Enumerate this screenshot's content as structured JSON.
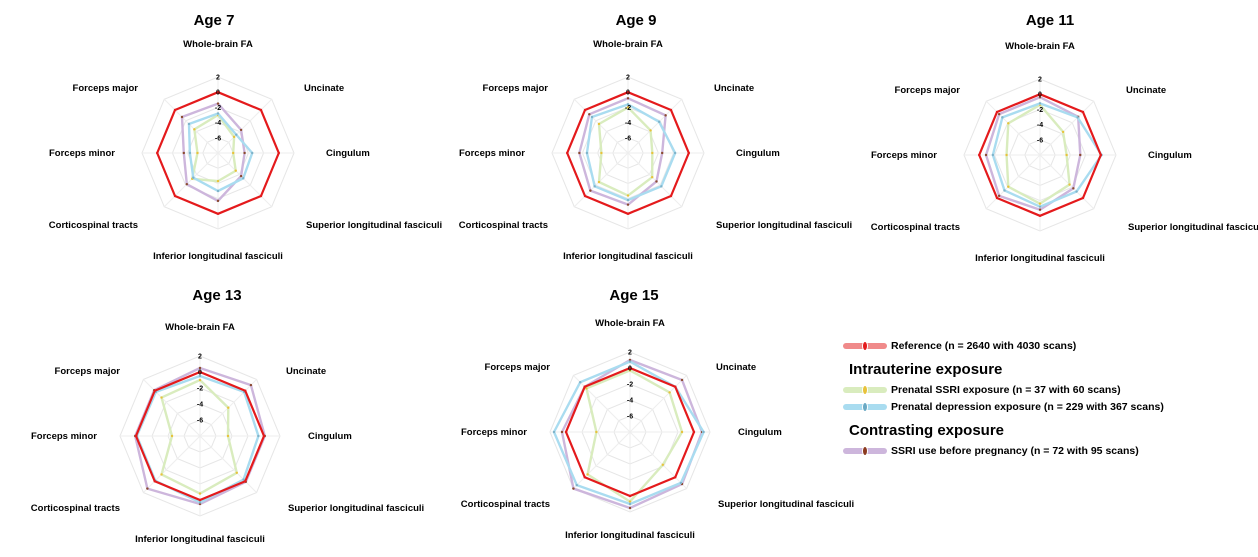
{
  "chart_data": [
    {
      "type": "radar",
      "title": "Age 7",
      "axes": [
        "Whole-brain FA",
        "Uncinate",
        "Cingulum",
        "Superior longitudinal fasciculi",
        "Inferior longitudinal fasciculi",
        "Corticospinal tracts",
        "Forceps minor",
        "Forceps major"
      ],
      "ticks": [
        "2",
        "0",
        "-2",
        "-4",
        "-6"
      ],
      "rlim": [
        -8,
        2
      ],
      "series": [
        {
          "name": "Reference (n = 2640 with 4030 scans)",
          "values": [
            0,
            0,
            0,
            0,
            0,
            0,
            0,
            0
          ]
        },
        {
          "name": "Prenatal SSRI exposure (n = 37 with 60 scans)",
          "values": [
            -3.0,
            -5.0,
            -6.0,
            -4.7,
            -4.3,
            -3.2,
            -5.3,
            -3.6
          ]
        },
        {
          "name": "Prenatal depression exposure (n = 229 with 367 scans)",
          "values": [
            -2.8,
            -4.6,
            -3.5,
            -3.3,
            -3.0,
            -3.4,
            -4.3,
            -2.6
          ]
        },
        {
          "name": "SSRI use before pregnancy (n = 72 with 95 scans)",
          "values": [
            -1.5,
            -3.7,
            -4.5,
            -3.7,
            -1.7,
            -2.2,
            -3.5,
            -1.3
          ]
        }
      ]
    },
    {
      "type": "radar",
      "title": "Age 9",
      "axes": [
        "Whole-brain FA",
        "Uncinate",
        "Cingulum",
        "Superior longitudinal fasciculi",
        "Inferior longitudinal fasciculi",
        "Corticospinal tracts",
        "Forceps minor",
        "Forceps major"
      ],
      "ticks": [
        "2",
        "0",
        "-2",
        "-4",
        "-6"
      ],
      "rlim": [
        -8,
        2
      ],
      "series": [
        {
          "name": "Reference (n = 2640 with 4030 scans)",
          "values": [
            0,
            0,
            0,
            0,
            0,
            0,
            0,
            0
          ]
        },
        {
          "name": "Prenatal SSRI exposure (n = 37 with 60 scans)",
          "values": [
            -2.0,
            -3.8,
            -4.8,
            -3.5,
            -2.4,
            -2.6,
            -4.5,
            -2.6
          ]
        },
        {
          "name": "Prenatal depression exposure (n = 229 with 367 scans)",
          "values": [
            -1.6,
            -2.2,
            -1.8,
            -1.8,
            -1.8,
            -1.8,
            -2.6,
            -1.3
          ]
        },
        {
          "name": "SSRI use before pregnancy (n = 72 with 95 scans)",
          "values": [
            -0.8,
            -1.0,
            -3.5,
            -2.7,
            -1.2,
            -1.0,
            -1.6,
            -0.8
          ]
        }
      ]
    },
    {
      "type": "radar",
      "title": "Age 11",
      "axes": [
        "Whole-brain FA",
        "Uncinate",
        "Cingulum",
        "Superior longitudinal fasciculi",
        "Inferior longitudinal fasciculi",
        "Corticospinal tracts",
        "Forceps minor",
        "Forceps major"
      ],
      "ticks": [
        "2",
        "0",
        "-2",
        "-4",
        "-6"
      ],
      "rlim": [
        -8,
        2
      ],
      "series": [
        {
          "name": "Reference (n = 2640 with 4030 scans)",
          "values": [
            0,
            0,
            0,
            0,
            0,
            0,
            0,
            0
          ]
        },
        {
          "name": "Prenatal SSRI exposure (n = 37 with 60 scans)",
          "values": [
            -1.4,
            -3.7,
            -4.5,
            -2.5,
            -1.6,
            -2.1,
            -3.6,
            -2.1
          ]
        },
        {
          "name": "Prenatal depression exposure (n = 229 with 367 scans)",
          "values": [
            -1.2,
            -1.0,
            0.1,
            -1.2,
            -1.2,
            -1.4,
            -1.8,
            -1.0
          ]
        },
        {
          "name": "SSRI use before pregnancy (n = 72 with 95 scans)",
          "values": [
            -0.4,
            -0.9,
            -2.7,
            -1.8,
            -0.8,
            -0.4,
            -0.9,
            -0.4
          ]
        }
      ]
    },
    {
      "type": "radar",
      "title": "Age 13",
      "axes": [
        "Whole-brain FA",
        "Uncinate",
        "Cingulum",
        "Superior longitudinal fasciculi",
        "Inferior longitudinal fasciculi",
        "Corticospinal tracts",
        "Forceps minor",
        "Forceps major"
      ],
      "ticks": [
        "2",
        "0",
        "-2",
        "-4",
        "-6"
      ],
      "rlim": [
        -8,
        2
      ],
      "series": [
        {
          "name": "Reference (n = 2640 with 4030 scans)",
          "values": [
            0,
            0,
            0,
            0,
            0,
            0,
            0,
            0
          ]
        },
        {
          "name": "Prenatal SSRI exposure (n = 37 with 60 scans)",
          "values": [
            -1.0,
            -3.0,
            -4.5,
            -1.5,
            -0.8,
            -1.2,
            -4.5,
            -1.2
          ]
        },
        {
          "name": "Prenatal depression exposure (n = 229 with 367 scans)",
          "values": [
            -0.5,
            -0.2,
            -0.7,
            -0.3,
            0.3,
            -0.1,
            -0.1,
            -0.2
          ]
        },
        {
          "name": "SSRI use before pregnancy (n = 72 with 95 scans)",
          "values": [
            0.5,
            1.0,
            0.1,
            0.1,
            0.5,
            1.3,
            0.1,
            0.1
          ]
        }
      ]
    },
    {
      "type": "radar",
      "title": "Age 15",
      "axes": [
        "Whole-brain FA",
        "Uncinate",
        "Cingulum",
        "Superior longitudinal fasciculi",
        "Inferior longitudinal fasciculi",
        "Corticospinal tracts",
        "Forceps minor",
        "Forceps major"
      ],
      "ticks": [
        "2",
        "0",
        "-2",
        "-4",
        "-6"
      ],
      "rlim": [
        -8,
        2
      ],
      "series": [
        {
          "name": "Reference (n = 2640 with 4030 scans)",
          "values": [
            0,
            0,
            0,
            0,
            0,
            0,
            0,
            0
          ]
        },
        {
          "name": "Prenatal SSRI exposure (n = 37 with 60 scans)",
          "values": [
            -0.3,
            -1.0,
            -1.5,
            -2.2,
            0.7,
            -0.5,
            -3.8,
            -0.3
          ]
        },
        {
          "name": "Prenatal depression exposure (n = 229 with 367 scans)",
          "values": [
            0.8,
            0.0,
            1.2,
            1.0,
            1.0,
            1.4,
            1.5,
            0.8
          ]
        },
        {
          "name": "SSRI use before pregnancy (n = 72 with 95 scans)",
          "values": [
            1.0,
            1.2,
            1.0,
            1.2,
            1.5,
            2.0,
            0.5,
            0.0
          ]
        }
      ]
    }
  ],
  "series_colors": [
    "#e41a1c",
    "#d9ecbe",
    "#a9dcf0",
    "#cdb6dc"
  ],
  "series_dot_colors": [
    "#e41a1c",
    "#e8c23a",
    "#7fb3c9",
    "#8b4a2f"
  ],
  "legend": {
    "reference_label": "Reference (n = 2640 with 4030 scans)",
    "heading_intrauterine": "Intrauterine exposure",
    "ssri_label": "Prenatal SSRI exposure (n = 37 with 60 scans)",
    "depression_label": "Prenatal depression exposure (n = 229 with 367 scans)",
    "heading_contrasting": "Contrasting exposure",
    "before_label": "SSRI use before pregnancy (n = 72 with 95 scans)",
    "bar_colors": [
      "#f08a8a",
      "#d9ecbe",
      "#a9dcf0",
      "#cdb6dc"
    ],
    "dot_colors": [
      "#e41a1c",
      "#e8c23a",
      "#6aa9c4",
      "#8b3a1f"
    ]
  }
}
